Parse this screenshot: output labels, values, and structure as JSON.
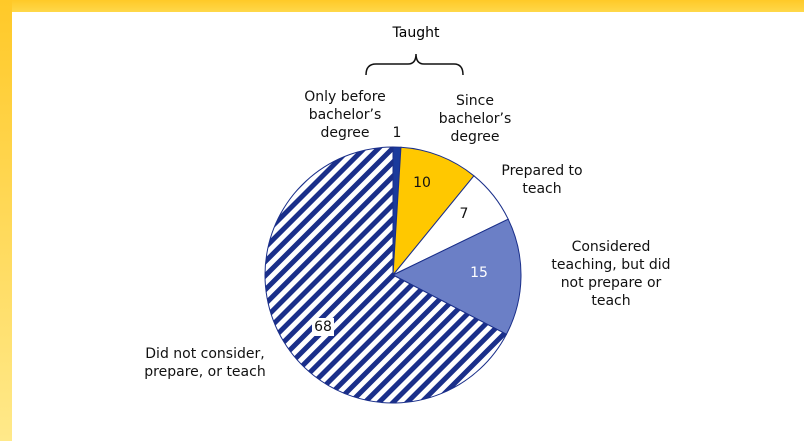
{
  "chart_data": {
    "type": "pie",
    "annotation": "Taught",
    "categories": [
      "Only before bachelor’s degree",
      "Since bachelor’s degree",
      "Prepared to teach",
      "Considered teaching, but did not prepare or teach",
      "Did not consider, prepare, or teach"
    ],
    "values": [
      1,
      10,
      7,
      15,
      68
    ],
    "colors": [
      "#1a3a9c",
      "#ffc800",
      "#ffffff",
      "#6b7fc6",
      "hatch"
    ]
  }
}
